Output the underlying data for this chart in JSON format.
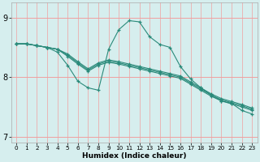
{
  "title": "",
  "xlabel": "Humidex (Indice chaleur)",
  "bg_color": "#d6eeee",
  "line_color": "#2a8a7a",
  "grid_color": "#f0a0a0",
  "xlim": [
    -0.5,
    23.5
  ],
  "ylim": [
    6.9,
    9.25
  ],
  "yticks": [
    7,
    8,
    9
  ],
  "xtick_labels": [
    "0",
    "1",
    "2",
    "3",
    "4",
    "5",
    "6",
    "7",
    "8",
    "9",
    "10",
    "11",
    "12",
    "13",
    "14",
    "15",
    "16",
    "17",
    "18",
    "19",
    "20",
    "21",
    "22",
    "23"
  ],
  "series": [
    [
      8.56,
      8.56,
      8.53,
      8.5,
      8.47,
      8.35,
      8.22,
      8.1,
      8.2,
      8.25,
      8.22,
      8.18,
      8.14,
      8.1,
      8.06,
      8.02,
      7.98,
      7.88,
      7.78,
      7.68,
      7.6,
      7.55,
      7.5,
      7.44
    ],
    [
      8.56,
      8.56,
      8.53,
      8.5,
      8.47,
      8.37,
      8.24,
      8.12,
      8.22,
      8.27,
      8.24,
      8.2,
      8.16,
      8.12,
      8.08,
      8.04,
      8.0,
      7.9,
      7.8,
      7.7,
      7.62,
      7.57,
      7.52,
      7.46
    ],
    [
      8.56,
      8.56,
      8.53,
      8.5,
      8.47,
      8.39,
      8.26,
      8.14,
      8.24,
      8.29,
      8.26,
      8.22,
      8.18,
      8.14,
      8.1,
      8.06,
      8.02,
      7.92,
      7.82,
      7.72,
      7.64,
      7.59,
      7.54,
      7.48
    ],
    [
      8.56,
      8.56,
      8.53,
      8.5,
      8.42,
      8.2,
      7.93,
      7.82,
      7.78,
      8.47,
      8.8,
      8.95,
      8.93,
      8.68,
      8.55,
      8.5,
      8.18,
      7.97,
      7.82,
      7.7,
      7.6,
      7.56,
      7.44,
      7.38
    ]
  ]
}
